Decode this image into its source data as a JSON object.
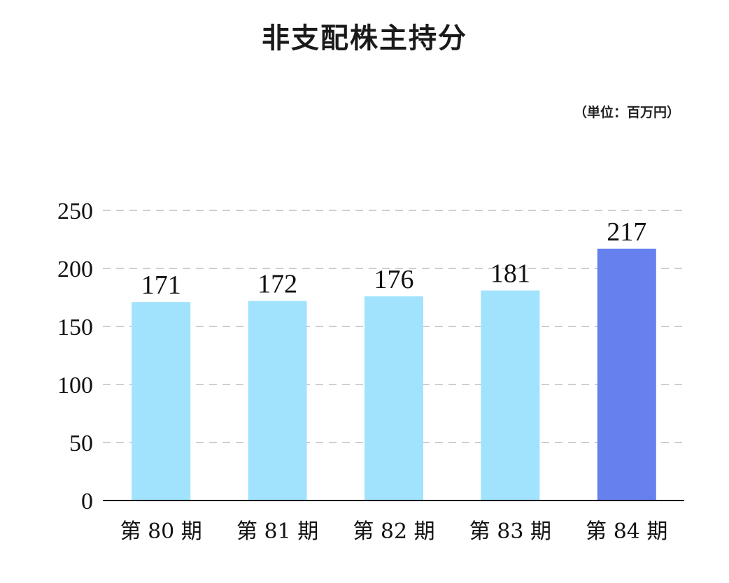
{
  "title": "非支配株主持分",
  "unit": "（単位：百万円）",
  "colors": {
    "bar": "#a1e3fd",
    "highlight": "#6680ee",
    "grid": "#cfcfcf",
    "axis": "#111111"
  },
  "chart_data": {
    "type": "bar",
    "title": "非支配株主持分",
    "unit": "（単位：百万円）",
    "categories": [
      "第 80 期",
      "第 81 期",
      "第 82 期",
      "第 83 期",
      "第 84 期"
    ],
    "values": [
      171,
      172,
      176,
      181,
      217
    ],
    "value_labels": [
      "171",
      "172",
      "176",
      "181",
      "217"
    ],
    "highlight_index": 4,
    "ylim": [
      0,
      250
    ],
    "yticks": [
      0,
      50,
      100,
      150,
      200,
      250
    ],
    "ytick_labels": [
      "0",
      "50",
      "100",
      "150",
      "200",
      "250"
    ],
    "grid": true,
    "grid_style": "dashed",
    "legend": "none"
  }
}
